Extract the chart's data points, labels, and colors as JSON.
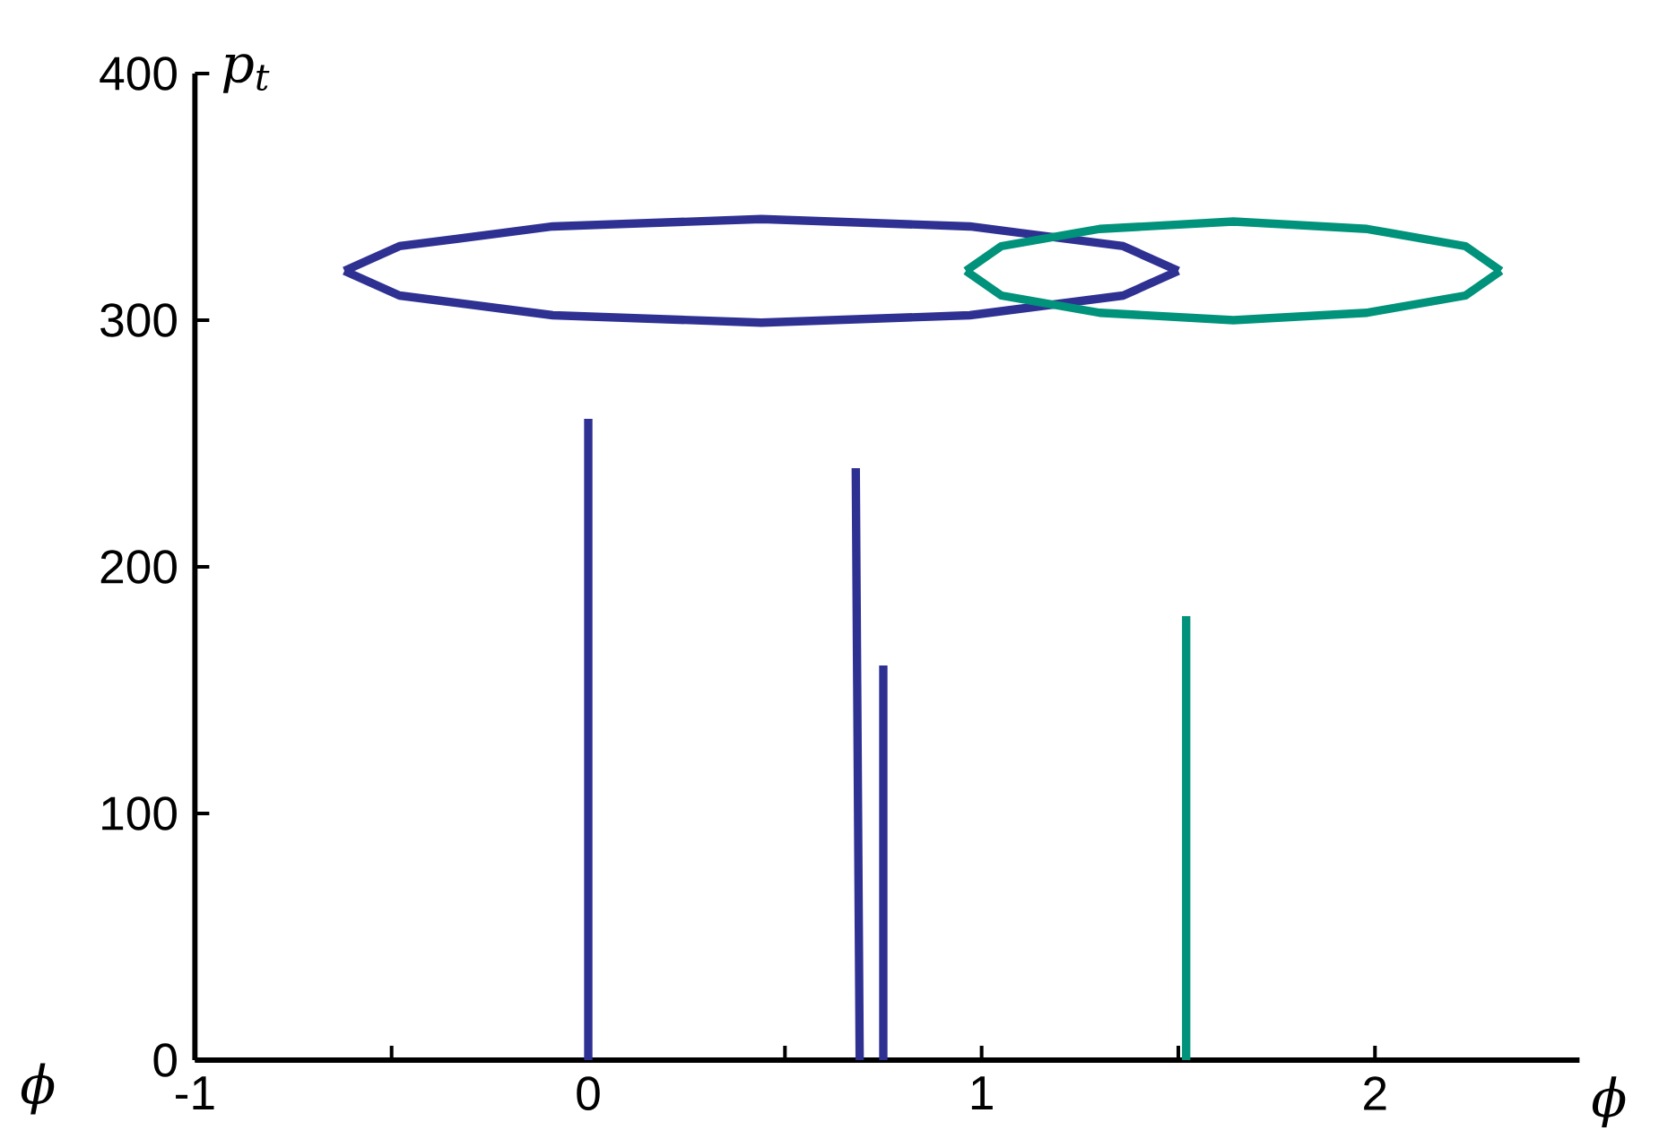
{
  "chart_data": {
    "type": "line",
    "xlabel": "ϕ",
    "ylabel": "p$_{t}$",
    "xlim": [
      -1,
      2.52
    ],
    "ylim": [
      0,
      400
    ],
    "xticks": [
      -1,
      {
        "value": -0.5,
        "label": null
      },
      0,
      {
        "value": 0.5,
        "label": null
      },
      1,
      {
        "value": 1.5,
        "label": null
      },
      2
    ],
    "yticks": [
      0,
      100,
      200,
      300,
      400
    ],
    "annotations": [
      "ϕ"
    ],
    "series": [
      {
        "color": "#2e3192",
        "x": [
          -0.62,
          -0.48,
          -0.09,
          0.44,
          0.97,
          1.36,
          1.5,
          null,
          -0.62,
          -0.48,
          -0.09,
          0.44,
          0.97,
          1.36,
          1.5,
          null,
          0,
          0,
          null,
          0.69,
          0.68,
          null,
          0.75,
          0.75
        ],
        "values": [
          320,
          330,
          338,
          341,
          338,
          330,
          320,
          null,
          320,
          310,
          302,
          299,
          302,
          310,
          320,
          null,
          0,
          260,
          null,
          0,
          240,
          null,
          0,
          160
        ]
      },
      {
        "color": "#00927a",
        "x": [
          0.96,
          1.05,
          1.3,
          1.64,
          1.98,
          2.23,
          2.32,
          null,
          0.96,
          1.05,
          1.3,
          1.64,
          1.98,
          2.23,
          2.32,
          null,
          1.52,
          1.52
        ],
        "values": [
          320,
          330,
          337,
          340,
          337,
          330,
          320,
          null,
          320,
          310,
          303,
          300,
          303,
          310,
          320,
          null,
          0,
          180
        ]
      }
    ]
  }
}
